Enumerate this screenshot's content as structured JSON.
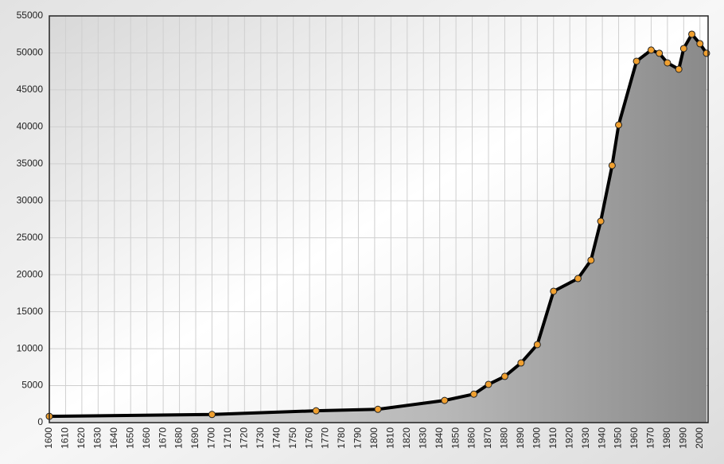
{
  "chart_data": {
    "type": "area",
    "x": [
      1600,
      1700,
      1764,
      1802,
      1843,
      1861,
      1870,
      1880,
      1890,
      1900,
      1910,
      1925,
      1933,
      1939,
      1946,
      1950,
      1961,
      1970,
      1975,
      1980,
      1987,
      1990,
      1995,
      2000,
      2004
    ],
    "series": [
      {
        "color": "#000000",
        "fill": "#9a9a9a",
        "marker_color": "#f0a030",
        "values": [
          850,
          1100,
          1600,
          1800,
          3000,
          3850,
          5170,
          6250,
          8070,
          10550,
          17760,
          19480,
          21960,
          27230,
          34770,
          40260,
          48870,
          50380,
          49950,
          48650,
          47790,
          50590,
          52530,
          51240,
          49950
        ]
      }
    ],
    "xlim": [
      1600,
      2005
    ],
    "xticks": [
      1600,
      1610,
      1620,
      1630,
      1640,
      1650,
      1660,
      1670,
      1680,
      1690,
      1700,
      1710,
      1720,
      1730,
      1740,
      1750,
      1760,
      1770,
      1780,
      1790,
      1800,
      1810,
      1820,
      1830,
      1840,
      1850,
      1860,
      1870,
      1880,
      1890,
      1900,
      1910,
      1920,
      1930,
      1940,
      1950,
      1960,
      1970,
      1980,
      1990,
      2000
    ],
    "ylim": [
      0,
      55000
    ],
    "yticks": [
      0,
      5000,
      10000,
      15000,
      20000,
      25000,
      30000,
      35000,
      40000,
      45000,
      50000,
      55000
    ],
    "grid": true
  }
}
